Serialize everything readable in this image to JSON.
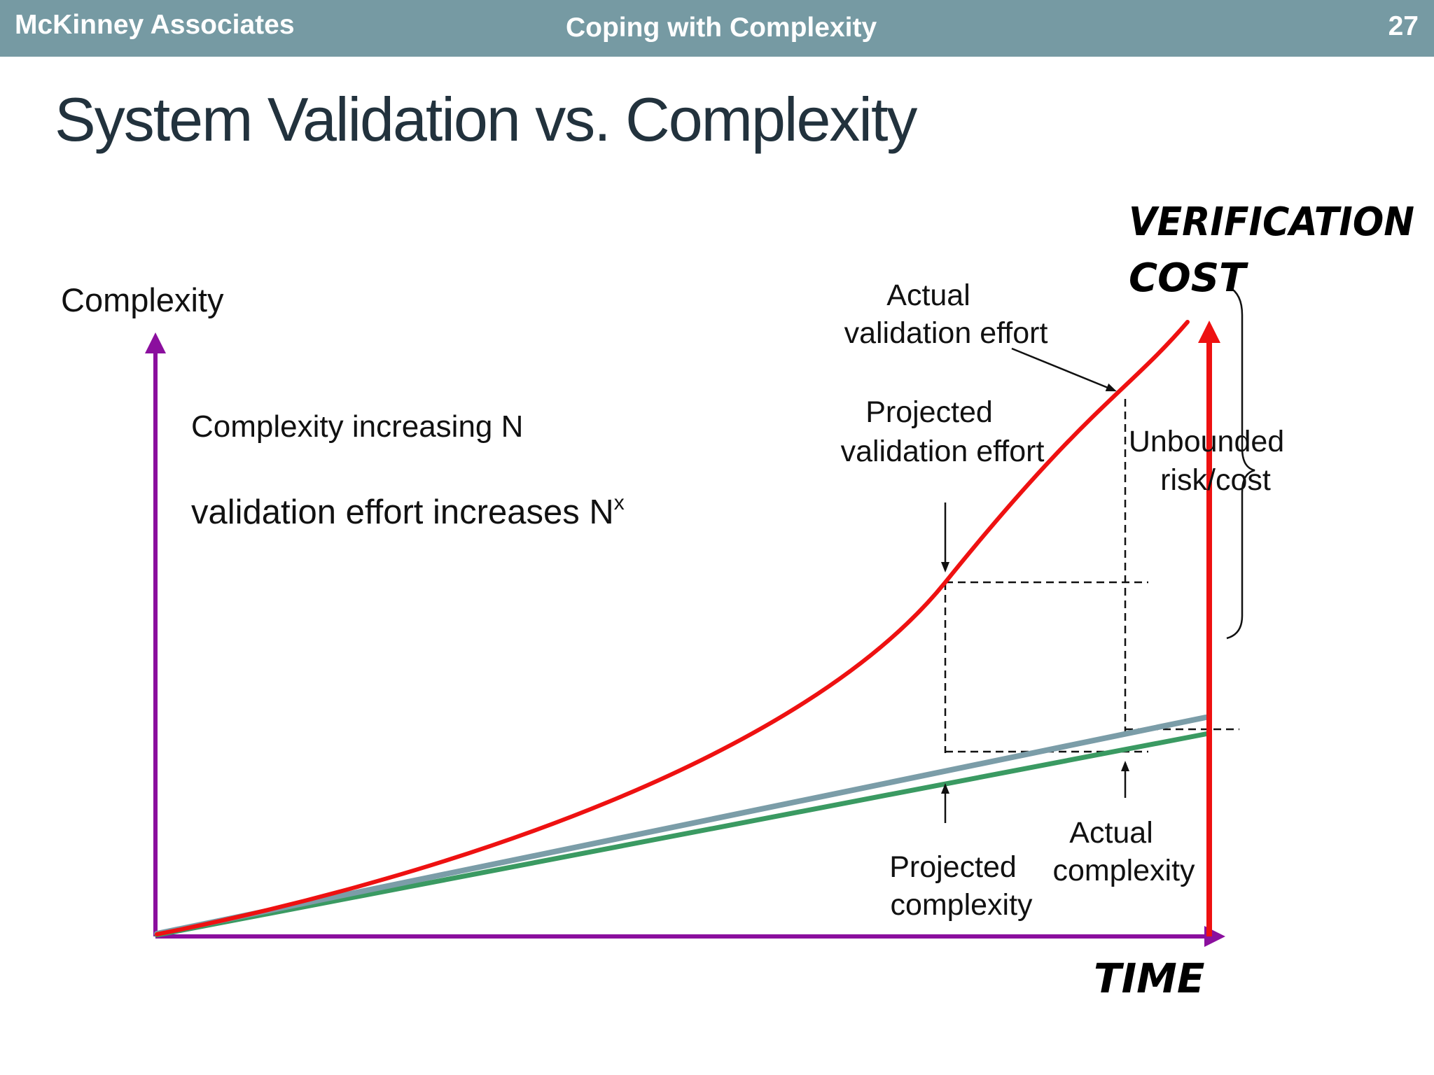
{
  "header": {
    "company": "McKinney Associates",
    "deck_title": "Coping with Complexity",
    "page_number": "27"
  },
  "slide": {
    "title": "System Validation vs. Complexity"
  },
  "diagram": {
    "y_axis_label": "Complexity",
    "x_axis_label": "TIME",
    "cost_label_line1": "VERIFICATION",
    "cost_label_line2": "COST",
    "statement_1": "Complexity increasing N",
    "statement_2_base": "validation effort increases N",
    "statement_2_exp": "x",
    "actual_validation_line1": "Actual",
    "actual_validation_line2": "validation effort",
    "projected_validation_line1": "Projected",
    "projected_validation_line2": "validation effort",
    "unbounded_line1": "Unbounded",
    "unbounded_line2": "risk/cost",
    "actual_complexity_line1": "Actual",
    "actual_complexity_line2": "complexity",
    "projected_complexity_line1": "Projected",
    "projected_complexity_line2": "complexity",
    "colors": {
      "axis": "#8b0f9e",
      "validation_curve": "#ee1111",
      "cost_arrow": "#ee1111",
      "actual_complexity_line": "#7b9da8",
      "projected_complexity_line": "#3a9a62",
      "guides": "#111111"
    }
  }
}
